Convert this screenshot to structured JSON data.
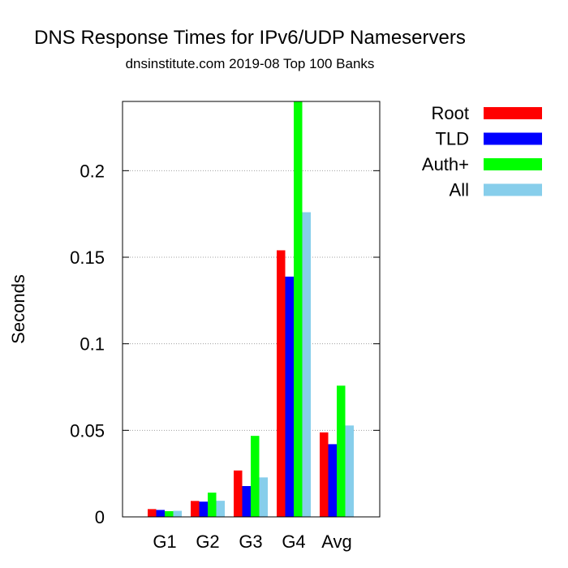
{
  "chart_data": {
    "type": "bar",
    "title": "DNS Response Times for IPv6/UDP Nameservers",
    "subtitle": "dnsinstitute.com 2019-08 Top 100 Banks",
    "xlabel": "",
    "ylabel": "Seconds",
    "categories": [
      "G1",
      "G2",
      "G3",
      "G4",
      "Avg"
    ],
    "ylim": [
      0,
      0.24
    ],
    "yticks": [
      0,
      0.05,
      0.1,
      0.15,
      0.2
    ],
    "ytick_labels": [
      "0",
      "0.05",
      "0.1",
      "0.15",
      "0.2"
    ],
    "grid": true,
    "legend_position": "outside-right",
    "series": [
      {
        "name": "Root",
        "color": "#ff0000",
        "values": [
          0.0045,
          0.0092,
          0.0268,
          0.154,
          0.0488
        ]
      },
      {
        "name": "TLD",
        "color": "#0000ff",
        "values": [
          0.004,
          0.0088,
          0.0178,
          0.1388,
          0.042
        ]
      },
      {
        "name": "Auth+",
        "color": "#00ff00",
        "values": [
          0.0033,
          0.014,
          0.0468,
          0.24,
          0.0758
        ]
      },
      {
        "name": "All",
        "color": "#87ceeb",
        "values": [
          0.0035,
          0.0093,
          0.0228,
          0.176,
          0.0528
        ]
      }
    ]
  }
}
